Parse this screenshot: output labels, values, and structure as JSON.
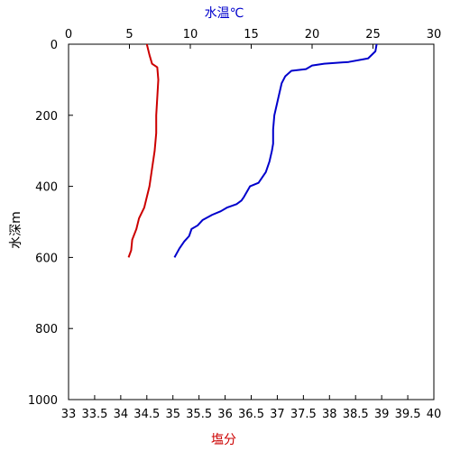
{
  "chart_data": {
    "type": "line",
    "y_axis": {
      "label": "水深m",
      "range": [
        0,
        1000
      ],
      "inverted": true,
      "ticks": [
        0,
        200,
        400,
        600,
        800,
        1000
      ]
    },
    "x_top_axis": {
      "label": "水温℃",
      "label_color": "#0000cc",
      "range": [
        0,
        30
      ],
      "ticks": [
        0,
        5,
        10,
        15,
        20,
        25,
        30
      ]
    },
    "x_bottom_axis": {
      "label": "塩分",
      "label_color": "#cc0000",
      "range": [
        33,
        40
      ],
      "ticks": [
        "33",
        "33.5",
        "34",
        "34.5",
        "35",
        "35.5",
        "36",
        "36.5",
        "37",
        "37.5",
        "38",
        "38.5",
        "39",
        "39.5",
        "40"
      ]
    },
    "grid": false,
    "series": [
      {
        "axis": "top",
        "color": "#0000cc",
        "x": [
          25.3,
          25.2,
          24.6,
          23.0,
          21.0,
          20.0,
          19.5,
          18.3,
          17.8,
          17.5,
          17.3,
          17.1,
          16.9,
          16.8,
          16.8,
          16.7,
          16.5,
          16.2,
          15.6,
          14.9,
          14.4,
          14.2,
          13.8,
          13.0,
          12.5,
          11.8,
          11.0,
          10.6,
          10.1,
          9.9,
          9.5,
          9.1,
          8.7
        ],
        "y": [
          0,
          20,
          40,
          50,
          55,
          60,
          70,
          75,
          90,
          110,
          140,
          170,
          200,
          240,
          280,
          300,
          330,
          360,
          390,
          400,
          430,
          440,
          450,
          460,
          470,
          480,
          495,
          510,
          520,
          540,
          555,
          575,
          600
        ]
      },
      {
        "axis": "bottom",
        "color": "#cc0000",
        "x": [
          34.5,
          34.55,
          34.6,
          34.7,
          34.72,
          34.7,
          34.68,
          34.68,
          34.65,
          34.6,
          34.55,
          34.5,
          34.45,
          34.35,
          34.3,
          34.22,
          34.2,
          34.15
        ],
        "y": [
          0,
          30,
          55,
          65,
          100,
          150,
          200,
          250,
          300,
          350,
          400,
          430,
          460,
          490,
          520,
          550,
          580,
          600
        ]
      }
    ]
  }
}
